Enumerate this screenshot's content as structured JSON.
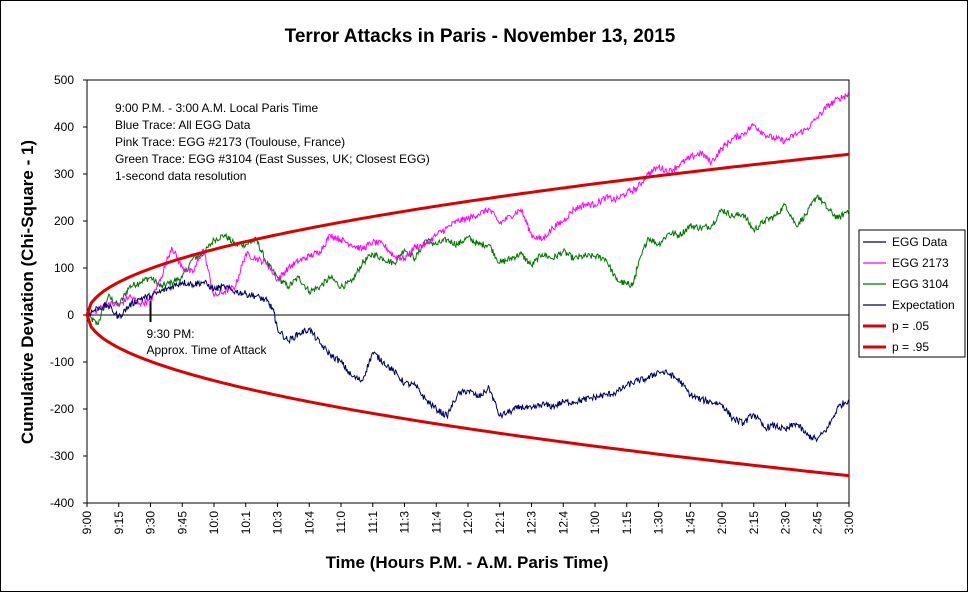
{
  "chart_data": {
    "type": "line",
    "title": "Terror Attacks in Paris - November 13, 2015",
    "xlabel": "Time (Hours P.M. - A.M. Paris Time)",
    "ylabel": "Cumulative Deviation (Chi-Square - 1)",
    "ylim": [
      -400,
      500
    ],
    "yticks": [
      500,
      400,
      300,
      200,
      100,
      0,
      -100,
      -200,
      -300,
      -400
    ],
    "xlim": [
      0,
      360
    ],
    "x_unit": "minutes after 9:00 PM",
    "xticks": [
      {
        "x": 0,
        "label": "9:00"
      },
      {
        "x": 15,
        "label": "9:15"
      },
      {
        "x": 30,
        "label": "9:30"
      },
      {
        "x": 45,
        "label": "9:45"
      },
      {
        "x": 60,
        "label": "10:0"
      },
      {
        "x": 75,
        "label": "10:1"
      },
      {
        "x": 90,
        "label": "10:3"
      },
      {
        "x": 105,
        "label": "10:4"
      },
      {
        "x": 120,
        "label": "11:0"
      },
      {
        "x": 135,
        "label": "11:1"
      },
      {
        "x": 150,
        "label": "11:3"
      },
      {
        "x": 165,
        "label": "11:4"
      },
      {
        "x": 180,
        "label": "12:0"
      },
      {
        "x": 195,
        "label": "12:1"
      },
      {
        "x": 210,
        "label": "12:3"
      },
      {
        "x": 225,
        "label": "12:4"
      },
      {
        "x": 240,
        "label": "1:00"
      },
      {
        "x": 255,
        "label": "1:15"
      },
      {
        "x": 270,
        "label": "1:30"
      },
      {
        "x": 285,
        "label": "1:45"
      },
      {
        "x": 300,
        "label": "2:00"
      },
      {
        "x": 315,
        "label": "2:15"
      },
      {
        "x": 330,
        "label": "2:30"
      },
      {
        "x": 345,
        "label": "2:45"
      },
      {
        "x": 360,
        "label": "3:00"
      }
    ],
    "notes": [
      "9:00 P.M. - 3:00 A.M. Local Paris Time",
      "Blue Trace: All EGG Data",
      "Pink Trace: EGG #2173 (Toulouse, France)",
      "Green Trace: EGG #3104 (East Susses, UK; Closest EGG)",
      "1-second data resolution"
    ],
    "annotation": {
      "x": 30,
      "y": 30,
      "line1": "9:30 PM:",
      "line2": "Approx. Time of Attack"
    },
    "series": [
      {
        "name": "EGG Data",
        "color": "#000066",
        "x": [
          0,
          5,
          10,
          15,
          20,
          25,
          30,
          35,
          40,
          45,
          50,
          55,
          60,
          65,
          70,
          75,
          80,
          85,
          88,
          90,
          95,
          100,
          105,
          110,
          115,
          120,
          125,
          130,
          135,
          140,
          145,
          150,
          155,
          160,
          165,
          170,
          175,
          180,
          185,
          190,
          195,
          200,
          205,
          210,
          215,
          220,
          225,
          230,
          235,
          240,
          245,
          250,
          255,
          260,
          265,
          270,
          275,
          280,
          285,
          290,
          295,
          300,
          305,
          310,
          315,
          320,
          325,
          330,
          335,
          340,
          345,
          350,
          355,
          360
        ],
        "values": [
          0,
          15,
          20,
          -5,
          20,
          35,
          40,
          50,
          60,
          70,
          65,
          70,
          55,
          60,
          50,
          45,
          40,
          30,
          10,
          -30,
          -55,
          -40,
          -30,
          -60,
          -85,
          -100,
          -130,
          -140,
          -80,
          -100,
          -120,
          -145,
          -150,
          -180,
          -200,
          -215,
          -170,
          -160,
          -175,
          -155,
          -215,
          -205,
          -195,
          -200,
          -190,
          -195,
          -185,
          -185,
          -180,
          -175,
          -170,
          -165,
          -150,
          -140,
          -135,
          -120,
          -125,
          -140,
          -170,
          -180,
          -185,
          -190,
          -220,
          -230,
          -210,
          -240,
          -235,
          -245,
          -230,
          -255,
          -265,
          -240,
          -195,
          -180
        ]
      },
      {
        "name": "EGG 2173",
        "color": "#ff00ff",
        "x": [
          0,
          5,
          10,
          15,
          20,
          25,
          30,
          35,
          40,
          45,
          50,
          55,
          60,
          65,
          70,
          75,
          80,
          85,
          90,
          95,
          100,
          105,
          110,
          115,
          120,
          125,
          130,
          135,
          140,
          145,
          150,
          155,
          160,
          165,
          170,
          175,
          180,
          185,
          190,
          195,
          200,
          205,
          210,
          215,
          220,
          225,
          230,
          235,
          240,
          245,
          250,
          255,
          260,
          265,
          270,
          275,
          280,
          285,
          290,
          295,
          300,
          305,
          310,
          315,
          320,
          325,
          330,
          335,
          340,
          345,
          350,
          355,
          360
        ],
        "values": [
          0,
          10,
          25,
          20,
          40,
          25,
          30,
          80,
          145,
          100,
          90,
          140,
          40,
          50,
          60,
          130,
          120,
          110,
          75,
          100,
          115,
          125,
          135,
          170,
          160,
          150,
          140,
          155,
          150,
          125,
          120,
          145,
          150,
          170,
          185,
          200,
          205,
          215,
          225,
          195,
          210,
          225,
          170,
          160,
          185,
          200,
          225,
          235,
          235,
          250,
          245,
          260,
          270,
          300,
          315,
          305,
          320,
          335,
          345,
          325,
          355,
          375,
          385,
          405,
          385,
          375,
          370,
          385,
          395,
          420,
          445,
          460,
          470
        ]
      },
      {
        "name": "EGG 3104",
        "color": "#007700",
        "x": [
          0,
          5,
          10,
          15,
          20,
          25,
          30,
          35,
          40,
          45,
          50,
          55,
          60,
          65,
          70,
          75,
          80,
          85,
          90,
          95,
          100,
          105,
          110,
          115,
          120,
          125,
          130,
          135,
          140,
          145,
          150,
          155,
          160,
          165,
          170,
          175,
          180,
          185,
          190,
          195,
          200,
          205,
          210,
          215,
          220,
          225,
          230,
          235,
          240,
          245,
          250,
          255,
          258,
          260,
          265,
          270,
          275,
          280,
          285,
          290,
          295,
          300,
          305,
          310,
          315,
          320,
          325,
          330,
          335,
          340,
          345,
          350,
          355,
          360
        ],
        "values": [
          0,
          -20,
          40,
          20,
          60,
          70,
          80,
          60,
          70,
          80,
          120,
          130,
          160,
          170,
          150,
          150,
          160,
          110,
          80,
          60,
          80,
          50,
          60,
          80,
          60,
          70,
          110,
          130,
          120,
          110,
          140,
          120,
          160,
          150,
          160,
          150,
          165,
          150,
          150,
          110,
          120,
          130,
          105,
          130,
          120,
          135,
          120,
          125,
          125,
          120,
          75,
          65,
          65,
          100,
          165,
          150,
          175,
          170,
          190,
          185,
          190,
          225,
          210,
          215,
          180,
          200,
          210,
          235,
          190,
          215,
          255,
          225,
          205,
          225
        ]
      },
      {
        "name": "Expectation",
        "color": "#000066",
        "x": [
          0,
          360
        ],
        "values": [
          0,
          0
        ]
      },
      {
        "name": "p = .05",
        "color": "#dd0000",
        "curve": "y = 1.645*sqrt(2*60*t)",
        "x_unit": "minutes"
      },
      {
        "name": "p = .95",
        "color": "#dd0000",
        "curve": "y = -1.645*sqrt(2*60*t)",
        "x_unit": "minutes"
      }
    ]
  }
}
